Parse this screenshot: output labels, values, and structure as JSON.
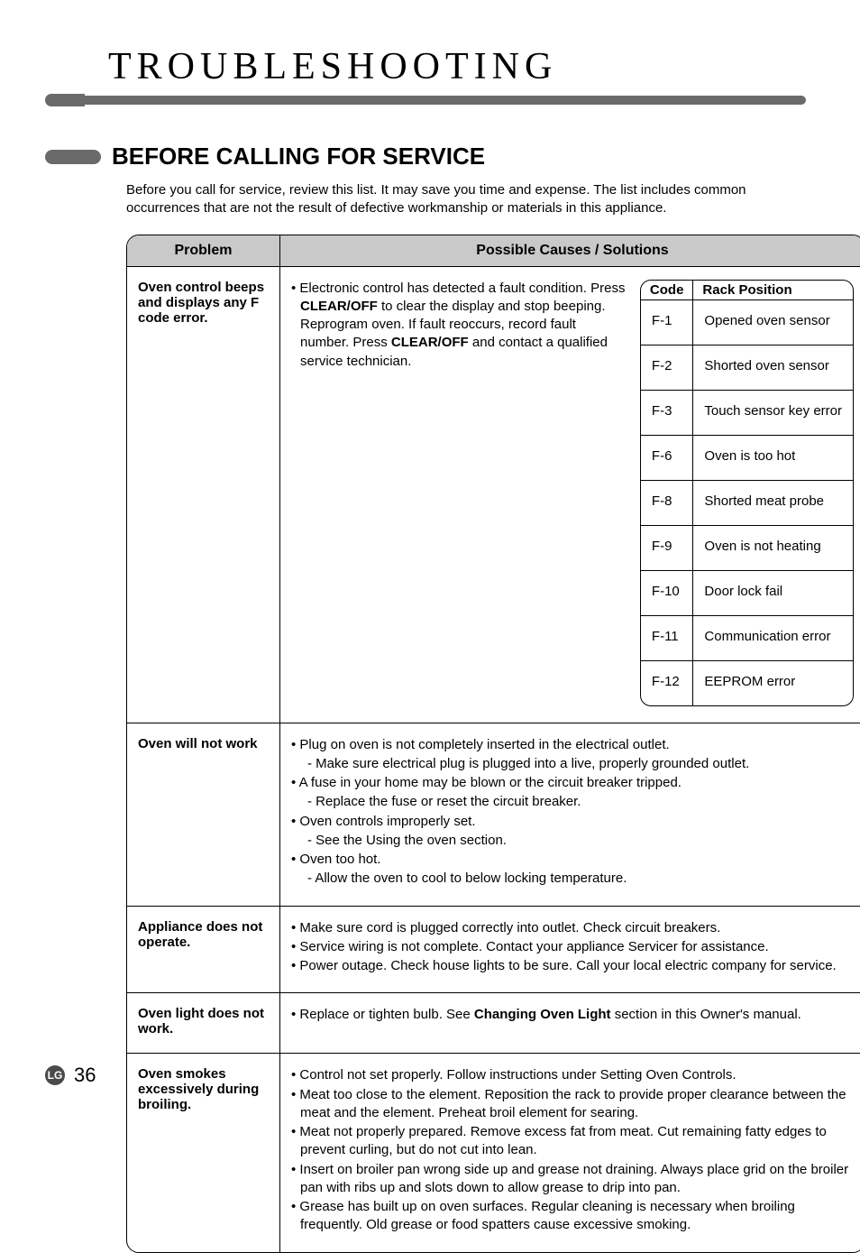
{
  "page_title": "TROUBLESHOOTING",
  "section_title": "BEFORE CALLING FOR SERVICE",
  "intro": "Before you call for service, review this list. It may save you time and expense. The list includes common occurrences that are not the result of defective workmanship or materials in this appliance.",
  "columns": {
    "problem": "Problem",
    "solutions": "Possible Causes / Solutions"
  },
  "rows": [
    {
      "problem": "Oven control beeps and displays any F code error.",
      "solution_html": "• Electronic control has detected a fault condition. Press <span class='b'>CLEAR/OFF</span> to clear the display and stop beeping. Reprogram oven. If fault reoccurs, record fault number. Press <span class='b'>CLEAR/OFF</span> and contact a qualified service technician.",
      "has_code_table": true
    },
    {
      "problem": "Oven will not work",
      "solution_lines": [
        "• Plug on oven is not completely inserted in the electrical outlet.",
        {
          "sub": "- Make sure electrical plug is plugged into a live, properly grounded outlet."
        },
        "• A fuse in your home may be blown or the circuit breaker tripped.",
        {
          "sub": "- Replace the fuse or reset the circuit breaker."
        },
        "• Oven controls improperly set.",
        {
          "sub": "- See the Using the oven section."
        },
        "• Oven too hot.",
        {
          "sub": "- Allow the oven to cool to below locking temperature."
        }
      ]
    },
    {
      "problem": "Appliance does not operate.",
      "solution_lines": [
        "• Make sure cord is plugged correctly into outlet. Check circuit breakers.",
        "• Service wiring is not complete. Contact your appliance Servicer for assistance.",
        "• Power outage. Check house lights to be sure. Call your local electric company for service."
      ]
    },
    {
      "problem": "Oven light does not work.",
      "solution_html": "• Replace or tighten bulb. See <span class='b'>Changing Oven Light</span> section in this Owner's manual."
    },
    {
      "problem": "Oven smokes excessively during broiling.",
      "solution_lines": [
        "• Control not set properly. Follow instructions under Setting Oven Controls.",
        "• Meat too close to the element. Reposition the rack to provide proper clearance between the meat and the element. Preheat broil element for searing.",
        "• Meat not properly prepared. Remove excess fat from meat. Cut remaining fatty edges to prevent curling, but do not cut into lean.",
        "• Insert on broiler pan wrong side up and grease not draining. Always place grid on the broiler pan with ribs up and slots down to allow grease to drip into pan.",
        "• Grease has built up on oven surfaces. Regular cleaning is necessary when broiling frequently. Old grease or food spatters cause excessive smoking."
      ]
    }
  ],
  "code_table": {
    "headers": {
      "code": "Code",
      "rack": "Rack Position"
    },
    "rows": [
      {
        "code": "F-1",
        "desc": "Opened oven sensor"
      },
      {
        "code": "F-2",
        "desc": "Shorted oven sensor"
      },
      {
        "code": "F-3",
        "desc": "Touch sensor key error"
      },
      {
        "code": "F-6",
        "desc": "Oven is too hot"
      },
      {
        "code": "F-8",
        "desc": "Shorted meat probe"
      },
      {
        "code": "F-9",
        "desc": "Oven is not heating"
      },
      {
        "code": "F-10",
        "desc": "Door lock fail"
      },
      {
        "code": "F-11",
        "desc": "Communication error"
      },
      {
        "code": "F-12",
        "desc": "EEPROM error"
      }
    ]
  },
  "footer": {
    "logo": "LG",
    "page_number": "36"
  },
  "colors": {
    "accent_gray": "#6a6a6a",
    "header_bg": "#c9c9c9",
    "text": "#000000",
    "bg": "#ffffff"
  }
}
